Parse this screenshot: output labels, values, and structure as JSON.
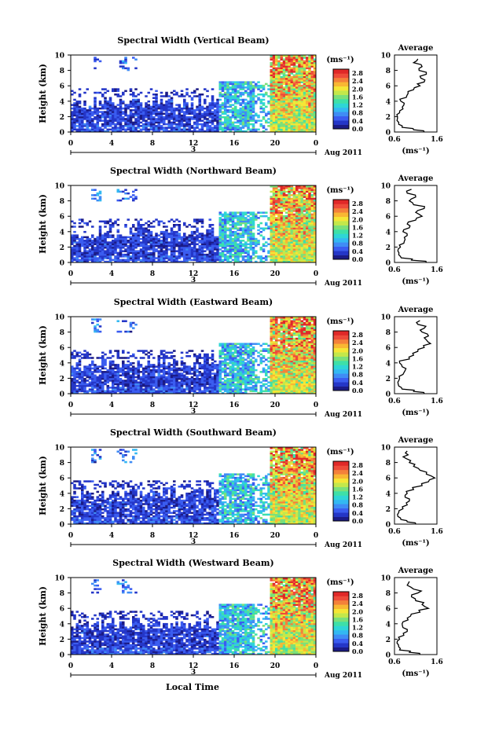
{
  "chart_data": {
    "type": "heatmap",
    "panels": [
      {
        "title": "Spectral Width (Vertical Beam)",
        "seed": 11
      },
      {
        "title": "Spectral Width (Northward Beam)",
        "seed": 23
      },
      {
        "title": "Spectral Width (Eastward Beam)",
        "seed": 37
      },
      {
        "title": "Spectral Width (Southward Beam)",
        "seed": 41
      },
      {
        "title": "Spectral Width (Westward Beam)",
        "seed": 53
      }
    ],
    "ylabel": "Height (km)",
    "xlabel": "Local Time",
    "ylim": [
      0,
      10
    ],
    "yticks": [
      "0",
      "2",
      "4",
      "6",
      "8",
      "10"
    ],
    "xlim": [
      0,
      24
    ],
    "xticks": [
      "0",
      "4",
      "8",
      "12",
      "16",
      "20",
      "0"
    ],
    "day_label": "3",
    "date_label": "Aug 2011",
    "colorbar": {
      "unit": "(ms⁻¹)",
      "ticks": [
        "0.0",
        "0.4",
        "0.8",
        "1.2",
        "1.6",
        "2.0",
        "2.4",
        "2.8"
      ],
      "range": [
        0,
        3.0
      ],
      "colors": [
        "#1b1b86",
        "#2436c8",
        "#3a5cf0",
        "#3f8cf5",
        "#33b8f2",
        "#2ed6d6",
        "#3ee0a8",
        "#7be07a",
        "#c4e84a",
        "#f5e636",
        "#f9b733",
        "#f4813a",
        "#ee4b3a",
        "#e02828"
      ]
    },
    "average": {
      "title": "Average",
      "xlabel": "(ms⁻¹)",
      "xticks": [
        "0.6",
        "1.6"
      ],
      "xlim": [
        0.6,
        1.6
      ],
      "ylim": [
        0,
        10
      ],
      "yticks": [
        "0",
        "2",
        "4",
        "6",
        "8",
        "10"
      ],
      "profiles": [
        {
          "height": [
            0,
            0.3,
            0.6,
            1,
            1.5,
            2,
            2.5,
            3,
            3.5,
            4,
            4.5,
            5,
            5.5,
            6,
            6.5,
            7,
            7.5,
            8,
            8.5,
            9,
            9.5
          ],
          "width": [
            1.3,
            1.05,
            0.78,
            0.7,
            0.66,
            0.67,
            0.72,
            0.8,
            0.82,
            0.75,
            0.88,
            0.92,
            1.05,
            1.2,
            1.3,
            1.22,
            1.35,
            1.18,
            1.25,
            1.05,
            1.15
          ]
        },
        {
          "height": [
            0,
            0.3,
            0.6,
            1,
            1.5,
            2,
            2.5,
            3,
            3.5,
            4,
            4.5,
            5,
            5.5,
            6,
            6.5,
            7,
            7.5,
            8,
            8.5,
            9,
            9.5
          ],
          "width": [
            1.35,
            1.0,
            0.76,
            0.7,
            0.68,
            0.74,
            0.82,
            0.85,
            0.9,
            0.8,
            0.95,
            0.9,
            1.1,
            1.25,
            1.1,
            1.3,
            1.05,
            0.95,
            1.1,
            0.9,
            1.0
          ]
        },
        {
          "height": [
            0,
            0.3,
            0.6,
            1,
            1.5,
            2,
            2.5,
            3,
            3.5,
            4,
            4.5,
            5,
            5.5,
            6,
            6.5,
            7,
            7.5,
            8,
            8.5,
            9,
            9.5
          ],
          "width": [
            1.3,
            1.05,
            0.78,
            0.7,
            0.68,
            0.72,
            0.8,
            0.85,
            0.78,
            0.72,
            0.95,
            1.05,
            1.15,
            1.3,
            1.45,
            1.35,
            1.4,
            1.25,
            1.3,
            1.15,
            1.2
          ]
        },
        {
          "height": [
            0,
            0.3,
            0.6,
            1,
            1.5,
            2,
            2.5,
            3,
            3.5,
            4,
            4.5,
            5,
            5.5,
            6,
            6.5,
            7,
            7.5,
            8,
            8.5,
            9,
            9.5
          ],
          "width": [
            1.1,
            0.9,
            0.75,
            0.68,
            0.7,
            0.8,
            0.9,
            0.95,
            0.85,
            0.9,
            1.05,
            1.25,
            1.4,
            1.55,
            1.35,
            1.2,
            1.05,
            0.95,
            0.88,
            0.92,
            0.9
          ]
        },
        {
          "height": [
            0,
            0.3,
            0.6,
            1,
            1.5,
            2,
            2.5,
            3,
            3.5,
            4,
            4.5,
            5,
            5.5,
            6,
            6.5,
            7,
            7.5,
            8,
            8.5,
            9,
            9.5
          ],
          "width": [
            1.2,
            0.95,
            0.72,
            0.7,
            0.66,
            0.72,
            0.82,
            0.9,
            0.8,
            0.78,
            0.92,
            0.98,
            1.2,
            1.4,
            1.25,
            1.1,
            1.0,
            1.15,
            1.05,
            0.9,
            0.95
          ]
        }
      ]
    }
  }
}
